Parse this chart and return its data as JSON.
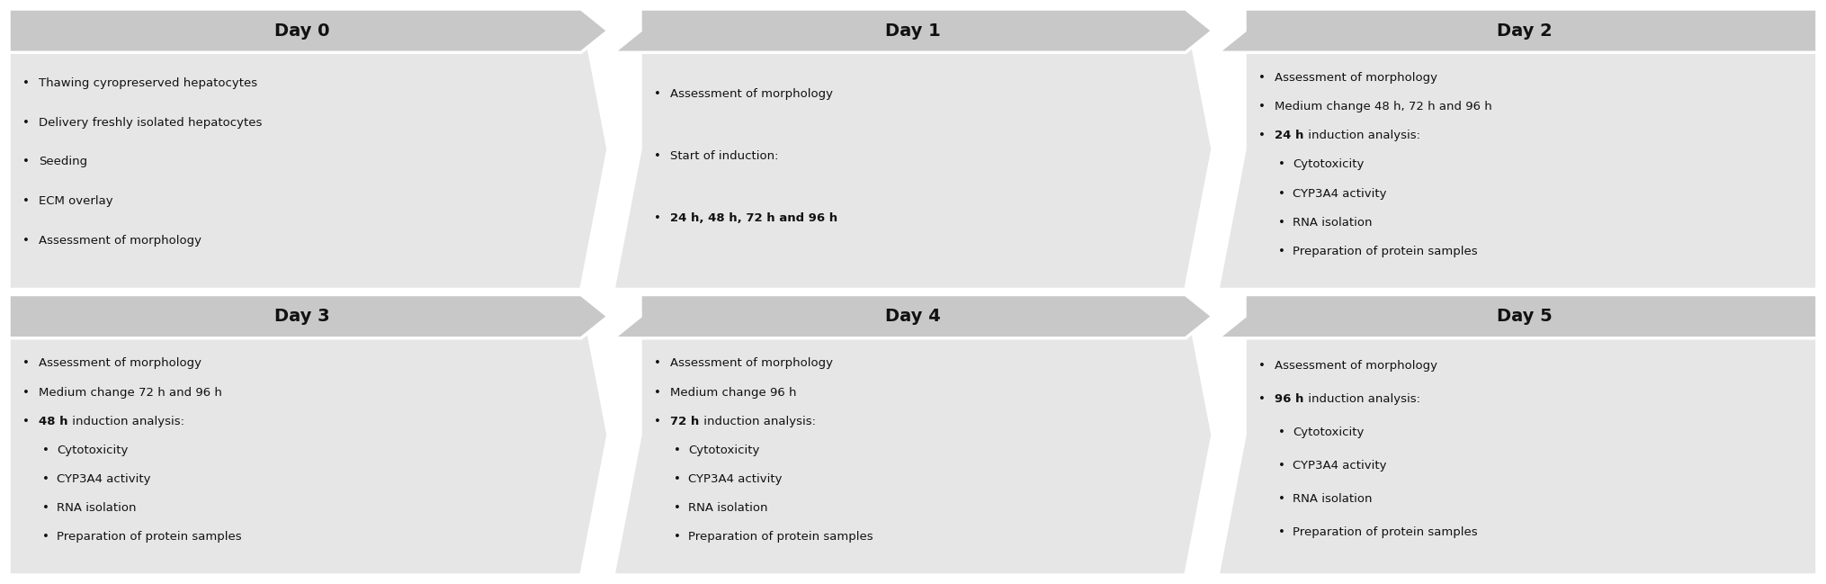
{
  "header_bg": "#c8c8c8",
  "body_bg": "#e6e6e6",
  "fig_bg": "#ffffff",
  "text_color": "#111111",
  "header_fontsize": 14,
  "body_fontsize": 9.5,
  "contents": [
    {
      "day": "Day 0",
      "lines": [
        [
          {
            "text": "Thawing cyropreserved hepatocytes",
            "bold": false
          }
        ],
        [
          {
            "text": "Delivery freshly isolated hepatocytes",
            "bold": false
          }
        ],
        [
          {
            "text": "Seeding",
            "bold": false
          }
        ],
        [
          {
            "text": "ECM overlay",
            "bold": false
          }
        ],
        [
          {
            "text": "Assessment of morphology",
            "bold": false
          }
        ]
      ],
      "indents": [
        1,
        1,
        1,
        1,
        1
      ]
    },
    {
      "day": "Day 1",
      "lines": [
        [
          {
            "text": "Assessment of morphology",
            "bold": false
          }
        ],
        [
          {
            "text": "Start of induction:",
            "bold": false
          }
        ],
        [
          {
            "text": "24 h, 48 h, 72 h and 96 h",
            "bold": true
          }
        ]
      ],
      "indents": [
        1,
        1,
        1
      ]
    },
    {
      "day": "Day 2",
      "lines": [
        [
          {
            "text": "Assessment of morphology",
            "bold": false
          }
        ],
        [
          {
            "text": "Medium change 48 h, 72 h and 96 h",
            "bold": false
          }
        ],
        [
          {
            "text": "24 h",
            "bold": true
          },
          {
            "text": " induction analysis:",
            "bold": false
          }
        ],
        [
          {
            "text": "Cytotoxicity",
            "bold": false
          }
        ],
        [
          {
            "text": "CYP3A4 activity",
            "bold": false
          }
        ],
        [
          {
            "text": "RNA isolation",
            "bold": false
          }
        ],
        [
          {
            "text": "Preparation of protein samples",
            "bold": false
          }
        ]
      ],
      "indents": [
        1,
        1,
        1,
        2,
        2,
        2,
        2
      ]
    },
    {
      "day": "Day 3",
      "lines": [
        [
          {
            "text": "Assessment of morphology",
            "bold": false
          }
        ],
        [
          {
            "text": "Medium change 72 h and 96 h",
            "bold": false
          }
        ],
        [
          {
            "text": "48 h",
            "bold": true
          },
          {
            "text": " induction analysis:",
            "bold": false
          }
        ],
        [
          {
            "text": "Cytotoxicity",
            "bold": false
          }
        ],
        [
          {
            "text": "CYP3A4 activity",
            "bold": false
          }
        ],
        [
          {
            "text": "RNA isolation",
            "bold": false
          }
        ],
        [
          {
            "text": "Preparation of protein samples",
            "bold": false
          }
        ]
      ],
      "indents": [
        1,
        1,
        1,
        2,
        2,
        2,
        2
      ]
    },
    {
      "day": "Day 4",
      "lines": [
        [
          {
            "text": "Assessment of morphology",
            "bold": false
          }
        ],
        [
          {
            "text": "Medium change 96 h",
            "bold": false
          }
        ],
        [
          {
            "text": "72 h",
            "bold": true
          },
          {
            "text": " induction analysis:",
            "bold": false
          }
        ],
        [
          {
            "text": "Cytotoxicity",
            "bold": false
          }
        ],
        [
          {
            "text": "CYP3A4 activity",
            "bold": false
          }
        ],
        [
          {
            "text": "RNA isolation",
            "bold": false
          }
        ],
        [
          {
            "text": "Preparation of protein samples",
            "bold": false
          }
        ]
      ],
      "indents": [
        1,
        1,
        1,
        2,
        2,
        2,
        2
      ]
    },
    {
      "day": "Day 5",
      "lines": [
        [
          {
            "text": "Assessment of morphology",
            "bold": false
          }
        ],
        [
          {
            "text": "96 h",
            "bold": true
          },
          {
            "text": " induction analysis:",
            "bold": false
          }
        ],
        [
          {
            "text": "Cytotoxicity",
            "bold": false
          }
        ],
        [
          {
            "text": "CYP3A4 activity",
            "bold": false
          }
        ],
        [
          {
            "text": "RNA isolation",
            "bold": false
          }
        ],
        [
          {
            "text": "Preparation of protein samples",
            "bold": false
          }
        ]
      ],
      "indents": [
        1,
        1,
        2,
        2,
        2,
        2
      ]
    }
  ]
}
